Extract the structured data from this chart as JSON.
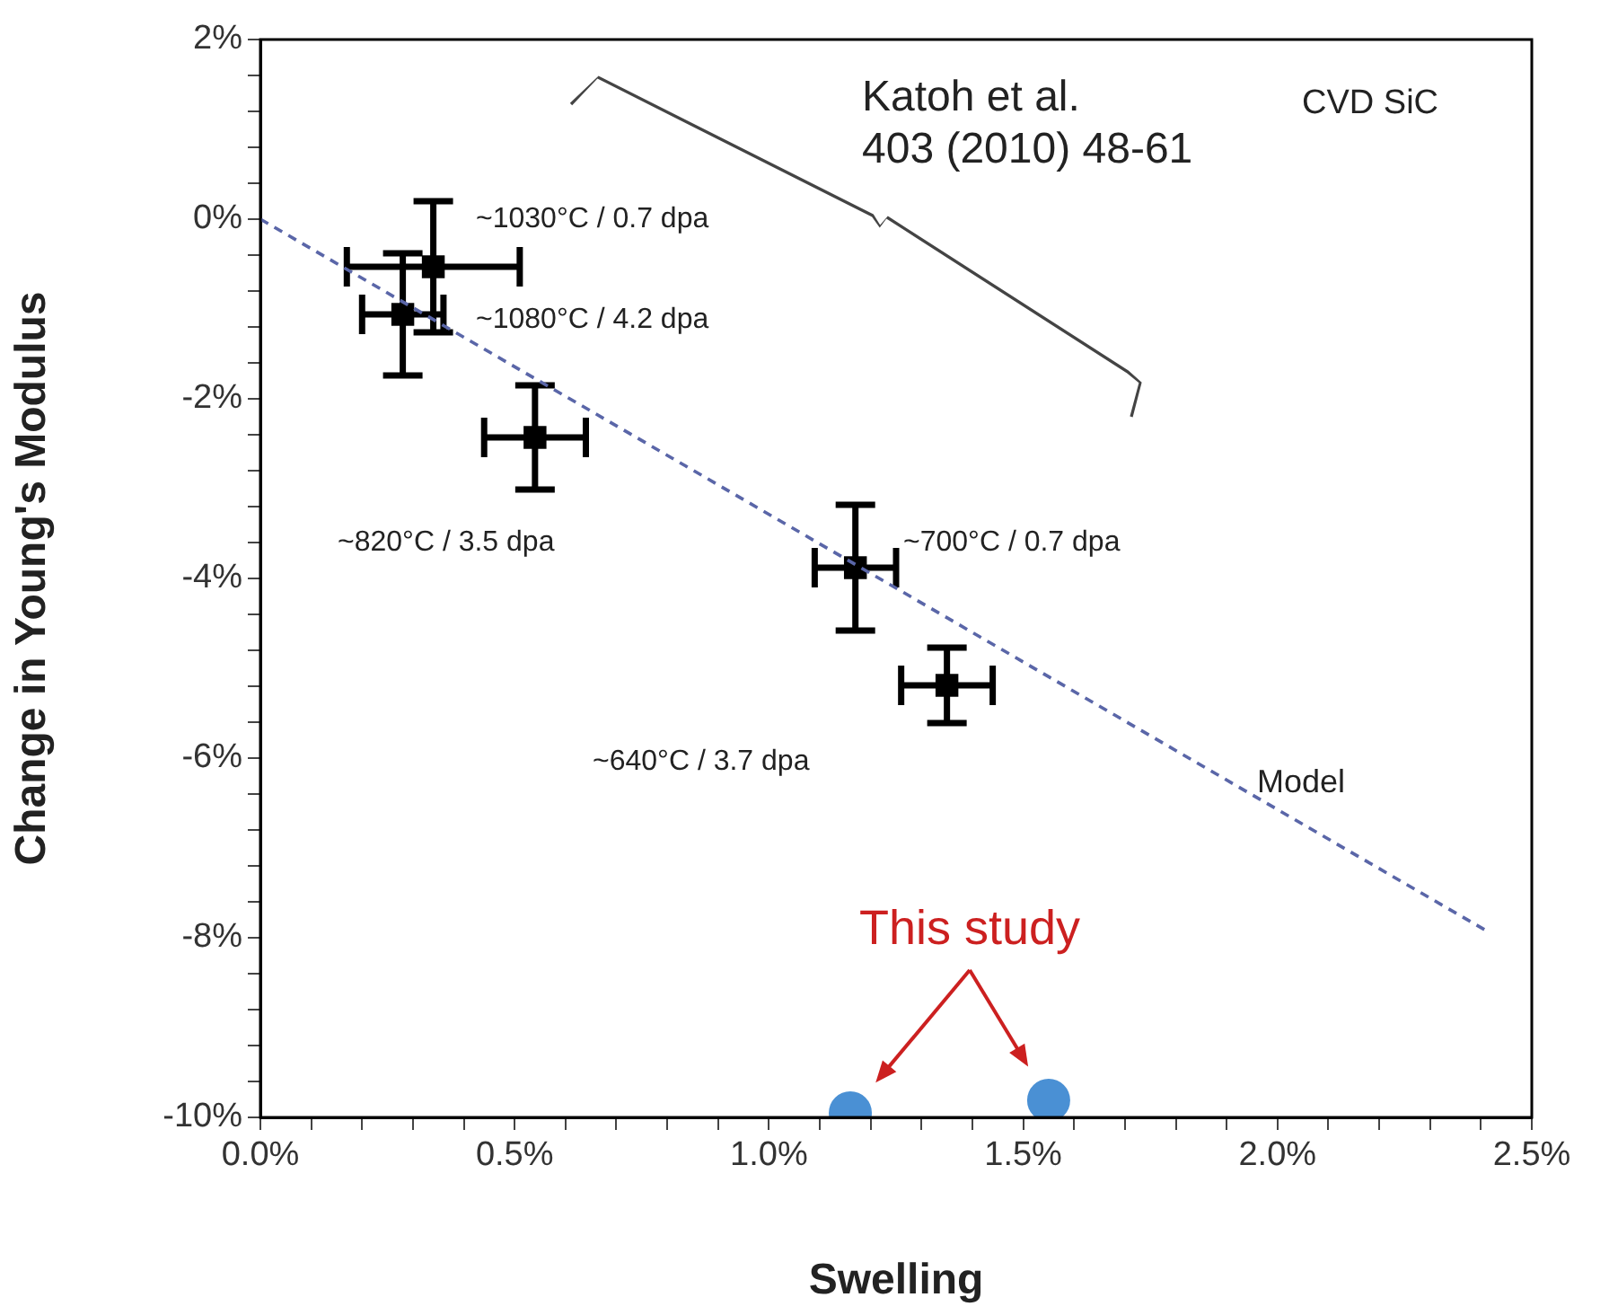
{
  "chart_data": {
    "type": "scatter",
    "xlabel": "Swelling",
    "ylabel": "Change in Young's Modulus",
    "xlim": [
      0,
      2.5
    ],
    "ylim": [
      -10,
      2
    ],
    "xticks": [
      {
        "value": 0,
        "label": "0.0%"
      },
      {
        "value": 0.1,
        "label": null
      },
      {
        "value": 0.2,
        "label": null
      },
      {
        "value": 0.3,
        "label": null
      },
      {
        "value": 0.4,
        "label": null
      },
      {
        "value": 0.5,
        "label": "0.5%"
      },
      {
        "value": 0.6,
        "label": null
      },
      {
        "value": 0.7,
        "label": null
      },
      {
        "value": 0.8,
        "label": null
      },
      {
        "value": 0.9,
        "label": null
      },
      {
        "value": 1,
        "label": "1.0%"
      },
      {
        "value": 1.1,
        "label": null
      },
      {
        "value": 1.2,
        "label": null
      },
      {
        "value": 1.3,
        "label": null
      },
      {
        "value": 1.4,
        "label": null
      },
      {
        "value": 1.5,
        "label": "1.5%"
      },
      {
        "value": 1.6,
        "label": null
      },
      {
        "value": 1.7,
        "label": null
      },
      {
        "value": 1.8,
        "label": null
      },
      {
        "value": 1.9,
        "label": null
      },
      {
        "value": 2,
        "label": "2.0%"
      },
      {
        "value": 2.1,
        "label": null
      },
      {
        "value": 2.2,
        "label": null
      },
      {
        "value": 2.3,
        "label": null
      },
      {
        "value": 2.4,
        "label": null
      },
      {
        "value": 2.5,
        "label": "2.5%"
      }
    ],
    "yticks": [
      {
        "value": -10,
        "label": "-10%"
      },
      {
        "value": -9.6,
        "label": null
      },
      {
        "value": -9.2,
        "label": null
      },
      {
        "value": -8.8,
        "label": null
      },
      {
        "value": -8.4,
        "label": null
      },
      {
        "value": -8,
        "label": "-8%"
      },
      {
        "value": -7.6,
        "label": null
      },
      {
        "value": -7.2,
        "label": null
      },
      {
        "value": -6.8,
        "label": null
      },
      {
        "value": -6.4,
        "label": null
      },
      {
        "value": -6,
        "label": "-6%"
      },
      {
        "value": -5.6,
        "label": null
      },
      {
        "value": -5.2,
        "label": null
      },
      {
        "value": -4.8,
        "label": null
      },
      {
        "value": -4.4,
        "label": null
      },
      {
        "value": -4,
        "label": "-4%"
      },
      {
        "value": -3.6,
        "label": null
      },
      {
        "value": -3.2,
        "label": null
      },
      {
        "value": -2.8,
        "label": null
      },
      {
        "value": -2.4,
        "label": null
      },
      {
        "value": -2,
        "label": "-2%"
      },
      {
        "value": -1.6,
        "label": null
      },
      {
        "value": -1.2,
        "label": null
      },
      {
        "value": -0.8,
        "label": null
      },
      {
        "value": -0.4,
        "label": null
      },
      {
        "value": 0,
        "label": "0%"
      },
      {
        "value": 0.4,
        "label": null
      },
      {
        "value": 0.8,
        "label": null
      },
      {
        "value": 1.2,
        "label": null
      },
      {
        "value": 1.6,
        "label": null
      },
      {
        "value": 2,
        "label": "2%"
      }
    ],
    "grid": false,
    "legend": false,
    "series": [
      {
        "type": "line",
        "color": "#5a66a8",
        "marker": "none",
        "line_style": "dashed",
        "x": [
          0,
          2.41
        ],
        "values": [
          0,
          -7.92
        ]
      },
      {
        "color": "#000000",
        "marker": "square",
        "x": [
          0.34,
          0.28,
          0.54,
          1.17,
          1.35
        ],
        "values": [
          -0.53,
          -1.06,
          -2.43,
          -3.88,
          -5.19
        ],
        "errors": [
          0.73,
          0.68,
          0.58,
          0.7,
          0.42
        ],
        "xerrors": [
          0.17,
          0.08,
          0.1,
          0.08,
          0.09
        ]
      },
      {
        "color": "#4a90d4",
        "marker": "circle",
        "x": [
          1.16,
          1.55
        ],
        "values": [
          -9.95,
          -9.81
        ]
      }
    ],
    "annotations": [
      "~1030°C / 0.7 dpa",
      "~1080°C / 4.2 dpa",
      "~820°C / 3.5 dpa",
      "~700°C / 0.7 dpa",
      "~640°C / 3.7 dpa",
      "Model",
      "This study",
      "Katoh et al.\n403 (2010) 48-61",
      "CVD SiC"
    ]
  }
}
